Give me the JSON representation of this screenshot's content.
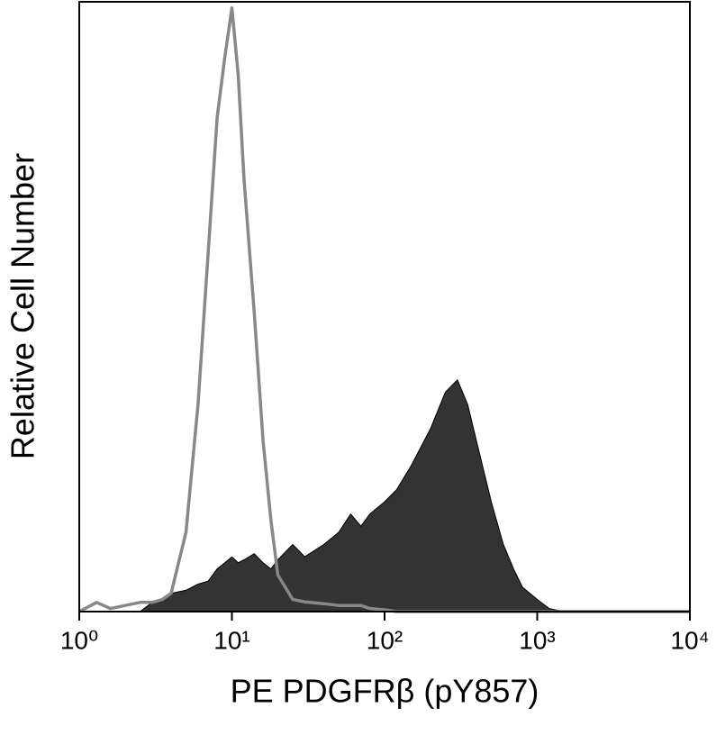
{
  "chart_data": {
    "type": "histogram-overlay",
    "x_label": "PE PDGFRβ (pY857)",
    "y_label": "Relative Cell Number",
    "xscale": "log",
    "xlim": [
      1,
      10000
    ],
    "xticks": [
      {
        "value": 1,
        "label": "10⁰"
      },
      {
        "value": 10,
        "label": "10¹"
      },
      {
        "value": 100,
        "label": "10²"
      },
      {
        "value": 1000,
        "label": "10³"
      },
      {
        "value": 10000,
        "label": "10⁴"
      }
    ],
    "ylim": [
      0,
      100
    ],
    "x": [
      1,
      1.3,
      1.6,
      2,
      2.5,
      3,
      3.5,
      4,
      5,
      6,
      7,
      8,
      9,
      10,
      11,
      12,
      14,
      16,
      18,
      20,
      25,
      30,
      40,
      50,
      60,
      70,
      80,
      100,
      120,
      150,
      200,
      250,
      300,
      350,
      400,
      500,
      600,
      700,
      800,
      1000,
      1200,
      1500,
      2000,
      5000,
      10000
    ],
    "series": [
      {
        "color": "#333333",
        "filled": true,
        "values": [
          0,
          0,
          0,
          0,
          0,
          1.5,
          2,
          3,
          3.5,
          4.5,
          5,
          7,
          8,
          9,
          8,
          8.5,
          9.5,
          8,
          7,
          8.5,
          11,
          9,
          11,
          13,
          16,
          14,
          16,
          18,
          20,
          24,
          30,
          36,
          38,
          34,
          28,
          18,
          11,
          7,
          4,
          2,
          0.5,
          0,
          0,
          0,
          0
        ]
      },
      {
        "color": "#888888",
        "filled": false,
        "values": [
          0,
          1.5,
          0.5,
          1,
          1.5,
          1.5,
          2,
          3,
          13,
          34,
          59,
          81,
          91,
          99,
          88,
          71,
          49,
          28,
          15,
          6,
          2,
          1.6,
          1.3,
          1,
          1,
          1,
          0.5,
          0.3,
          0,
          0,
          0,
          0,
          0,
          0,
          0,
          0,
          0,
          0,
          0,
          0,
          0,
          0,
          0,
          0,
          0
        ]
      }
    ]
  }
}
